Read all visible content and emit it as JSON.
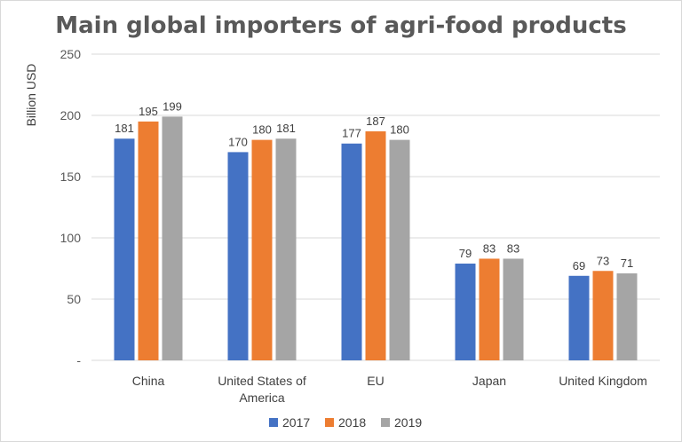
{
  "chart_data": {
    "type": "bar",
    "title": "Main global importers of agri-food products",
    "ylabel": "Billion USD",
    "xlabel": "",
    "ylim": [
      0,
      250
    ],
    "yticks": [
      0,
      50,
      100,
      150,
      200,
      250
    ],
    "ytick_labels": [
      "-",
      "50",
      "100",
      "150",
      "200",
      "250"
    ],
    "categories": [
      "China",
      "United States of America",
      "EU",
      "Japan",
      "United Kingdom"
    ],
    "category_lines": [
      [
        "China"
      ],
      [
        "United States of",
        "America"
      ],
      [
        "EU"
      ],
      [
        "Japan"
      ],
      [
        "United Kingdom"
      ]
    ],
    "series": [
      {
        "name": "2017",
        "color": "#4472c4",
        "values": [
          181,
          170,
          177,
          79,
          69
        ]
      },
      {
        "name": "2018",
        "color": "#ed7d31",
        "values": [
          195,
          180,
          187,
          83,
          73
        ]
      },
      {
        "name": "2019",
        "color": "#a5a5a5",
        "values": [
          199,
          181,
          180,
          83,
          71
        ]
      }
    ],
    "grid": true,
    "grid_color": "#d9d9d9",
    "legend_position": "bottom"
  }
}
